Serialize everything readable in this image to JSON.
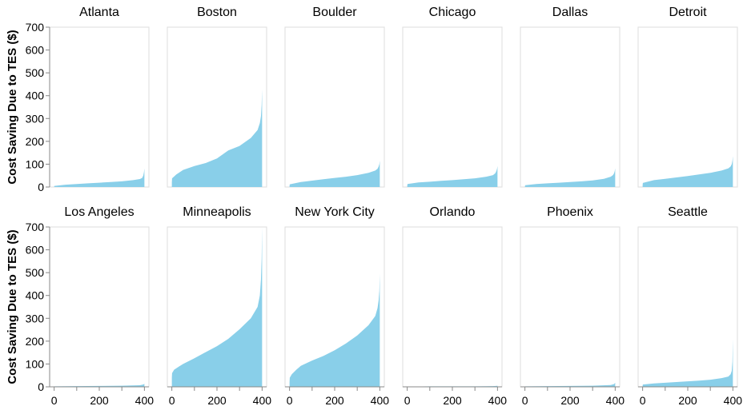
{
  "chart_data": {
    "type": "area",
    "ylabel": "Cost Saving Due to TES ($)",
    "ylim": [
      0,
      700
    ],
    "yticks": [
      0,
      100,
      200,
      300,
      400,
      500,
      600,
      700
    ],
    "xlim": [
      -20,
      420
    ],
    "xticks": [
      0,
      200,
      400
    ],
    "area_color": "#89cfe9",
    "facets": [
      {
        "name": "Atlanta",
        "x": [
          0,
          1,
          50,
          100,
          150,
          200,
          250,
          300,
          350,
          380,
          390,
          395,
          398,
          400
        ],
        "y": [
          2,
          5,
          10,
          13,
          16,
          19,
          22,
          25,
          30,
          35,
          40,
          50,
          65,
          82
        ]
      },
      {
        "name": "Boston",
        "x": [
          0,
          1,
          20,
          50,
          100,
          150,
          200,
          250,
          300,
          350,
          380,
          390,
          395,
          398,
          400
        ],
        "y": [
          20,
          38,
          55,
          75,
          92,
          105,
          125,
          160,
          180,
          215,
          250,
          280,
          310,
          360,
          428
        ]
      },
      {
        "name": "Boulder",
        "x": [
          0,
          1,
          50,
          100,
          150,
          200,
          250,
          300,
          350,
          380,
          390,
          395,
          398,
          400
        ],
        "y": [
          5,
          12,
          22,
          28,
          34,
          40,
          45,
          52,
          62,
          72,
          80,
          90,
          100,
          115
        ]
      },
      {
        "name": "Chicago",
        "x": [
          0,
          1,
          50,
          100,
          150,
          200,
          250,
          300,
          350,
          380,
          390,
          395,
          398,
          400
        ],
        "y": [
          5,
          13,
          20,
          23,
          27,
          30,
          34,
          38,
          45,
          52,
          60,
          70,
          80,
          92
        ]
      },
      {
        "name": "Dallas",
        "x": [
          0,
          1,
          50,
          100,
          150,
          200,
          250,
          300,
          350,
          380,
          390,
          395,
          398,
          400
        ],
        "y": [
          3,
          8,
          13,
          16,
          19,
          22,
          25,
          29,
          36,
          45,
          52,
          60,
          70,
          82
        ]
      },
      {
        "name": "Detroit",
        "x": [
          0,
          1,
          50,
          100,
          150,
          200,
          250,
          300,
          350,
          380,
          390,
          395,
          398,
          400
        ],
        "y": [
          8,
          18,
          30,
          36,
          42,
          48,
          55,
          62,
          72,
          82,
          90,
          100,
          115,
          135
        ]
      },
      {
        "name": "Los Angeles",
        "x": [
          0,
          1,
          100,
          200,
          300,
          380,
          395,
          400
        ],
        "y": [
          1,
          2,
          3,
          4,
          5,
          7,
          10,
          13
        ]
      },
      {
        "name": "Minneapolis",
        "x": [
          0,
          1,
          10,
          30,
          50,
          100,
          150,
          200,
          250,
          300,
          350,
          380,
          390,
          395,
          398,
          400
        ],
        "y": [
          40,
          60,
          75,
          88,
          100,
          125,
          152,
          178,
          210,
          252,
          300,
          350,
          400,
          470,
          560,
          700
        ]
      },
      {
        "name": "New York City",
        "x": [
          0,
          1,
          10,
          30,
          50,
          100,
          150,
          200,
          250,
          300,
          350,
          380,
          390,
          395,
          398,
          400
        ],
        "y": [
          20,
          40,
          55,
          75,
          92,
          115,
          135,
          160,
          190,
          225,
          270,
          310,
          345,
          380,
          420,
          495
        ]
      },
      {
        "name": "Orlando",
        "x": [
          0,
          1,
          100,
          200,
          300,
          380,
          395,
          400
        ],
        "y": [
          1,
          1,
          2,
          2,
          2,
          3,
          4,
          5
        ]
      },
      {
        "name": "Phoenix",
        "x": [
          0,
          1,
          100,
          200,
          300,
          380,
          395,
          400
        ],
        "y": [
          1,
          2,
          3,
          4,
          5,
          8,
          12,
          18
        ]
      },
      {
        "name": "Seattle",
        "x": [
          0,
          1,
          50,
          100,
          150,
          200,
          250,
          300,
          350,
          380,
          390,
          395,
          398,
          400
        ],
        "y": [
          5,
          10,
          15,
          18,
          21,
          24,
          27,
          31,
          38,
          45,
          55,
          70,
          110,
          210
        ]
      }
    ]
  }
}
